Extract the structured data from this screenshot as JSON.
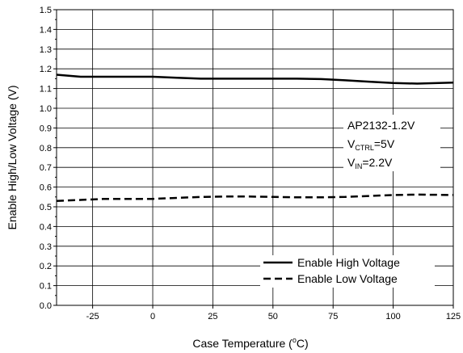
{
  "chart_data": {
    "type": "line",
    "xlabel": "Case Temperature (°C)",
    "xlabel_parts": {
      "before": "Case Temperature (",
      "sup": "o",
      "after": "C)"
    },
    "ylabel": "Enable High/Low Voltage (V)",
    "xlim": [
      -40,
      125
    ],
    "ylim": [
      0.0,
      1.5
    ],
    "x_ticks": [
      -25,
      0,
      25,
      50,
      75,
      100,
      125
    ],
    "x_tick_labels": [
      "-25",
      "0",
      "25",
      "50",
      "75",
      "100",
      "125"
    ],
    "y_ticks": [
      0.0,
      0.1,
      0.2,
      0.3,
      0.4,
      0.5,
      0.6,
      0.7,
      0.8,
      0.9,
      1.0,
      1.1,
      1.2,
      1.3,
      1.4,
      1.5
    ],
    "y_tick_labels": [
      "0.0",
      "0.1",
      "0.2",
      "0.3",
      "0.4",
      "0.5",
      "0.6",
      "0.7",
      "0.8",
      "0.9",
      "1.0",
      "1.1",
      "1.2",
      "1.3",
      "1.4",
      "1.5"
    ],
    "grid": true,
    "legend_position": "bottom-right",
    "series": [
      {
        "name": "Enable High Voltage",
        "style": "solid",
        "x": [
          -40,
          -30,
          -20,
          -10,
          0,
          10,
          20,
          30,
          40,
          50,
          60,
          70,
          80,
          90,
          100,
          110,
          125
        ],
        "y": [
          1.17,
          1.16,
          1.16,
          1.16,
          1.16,
          1.155,
          1.15,
          1.15,
          1.15,
          1.15,
          1.15,
          1.148,
          1.142,
          1.135,
          1.128,
          1.125,
          1.13
        ]
      },
      {
        "name": "Enable Low Voltage",
        "style": "dashed",
        "x": [
          -40,
          -30,
          -20,
          -10,
          0,
          10,
          20,
          30,
          40,
          50,
          60,
          70,
          80,
          90,
          100,
          110,
          125
        ],
        "y": [
          0.53,
          0.535,
          0.54,
          0.54,
          0.54,
          0.545,
          0.55,
          0.552,
          0.552,
          0.55,
          0.548,
          0.548,
          0.55,
          0.555,
          0.56,
          0.562,
          0.56
        ]
      }
    ],
    "annotation": {
      "line1": "AP2132-1.2V",
      "line2": {
        "main": "V",
        "sub": "CTRL",
        "rest": "=5V"
      },
      "line3": {
        "main": "V",
        "sub": "IN",
        "rest": "=2.2V"
      }
    }
  }
}
